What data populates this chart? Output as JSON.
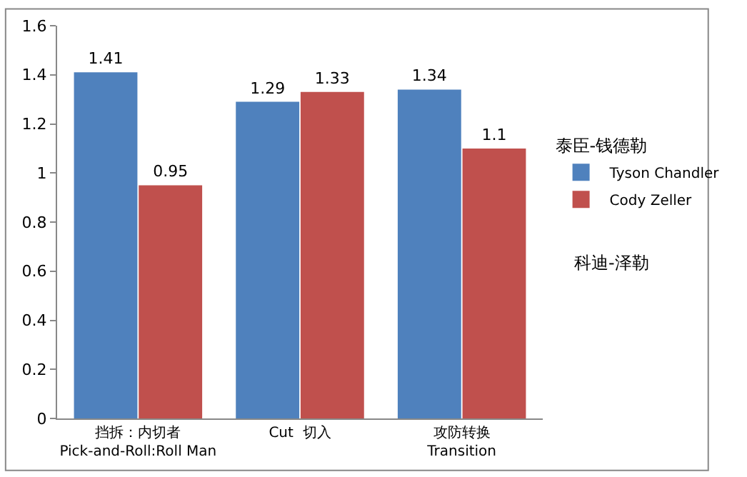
{
  "chart_data": {
    "type": "bar",
    "categories": [
      "挡拆：内切者\nPick-and-Roll:Roll Man",
      "Cut  切入",
      "攻防转换\nTransition"
    ],
    "series": [
      {
        "name": "Tyson Chandler",
        "color": "#4f81bd",
        "values": [
          1.41,
          1.29,
          1.34
        ]
      },
      {
        "name": "Cody Zeller",
        "color": "#c0504d",
        "values": [
          0.95,
          1.33,
          1.1
        ]
      }
    ],
    "legend_title": "泰臣-钱德勒",
    "annotations": [
      "科迪-泽勒"
    ],
    "ylim": [
      0,
      1.6
    ],
    "yticks": [
      0,
      0.2,
      0.4,
      0.6,
      0.8,
      1,
      1.2,
      1.4,
      1.6
    ],
    "data_labels": true,
    "grid": false,
    "legend": "right"
  }
}
